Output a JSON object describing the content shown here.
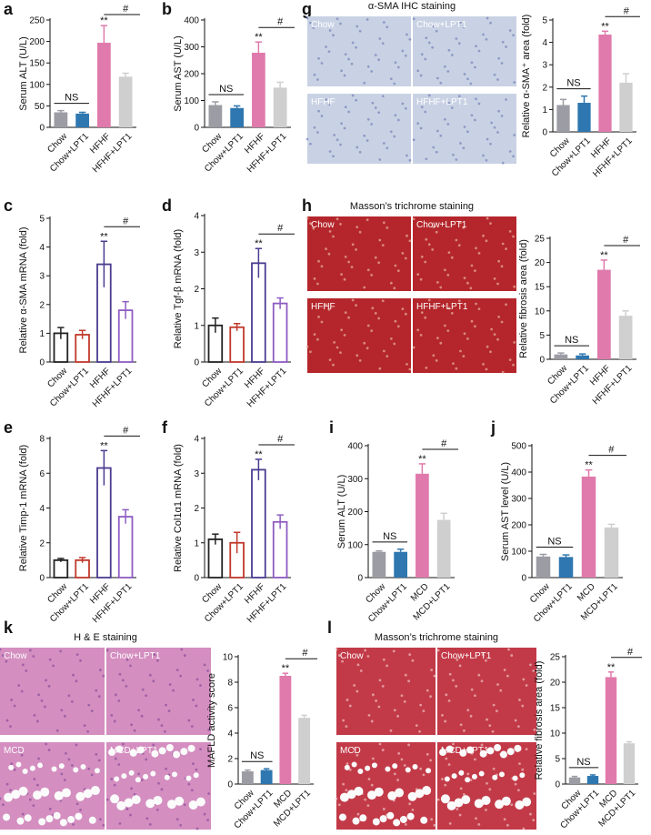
{
  "chart_data": [
    {
      "type": "bar",
      "panel": "a",
      "y_label": "Serum ALT (U/L)",
      "categories": [
        "Chow",
        "Chow+LPT1",
        "HFHF",
        "HFHF+LPT1"
      ],
      "values": [
        35,
        32,
        197,
        118
      ],
      "errors": [
        4,
        3,
        40,
        8
      ],
      "colors": [
        "#9c9ca4",
        "#2e77b0",
        "#e07aac",
        "#cfcfcf"
      ],
      "bar_style": "filled",
      "ylim": [
        0,
        250
      ],
      "yticks": [
        0,
        50,
        100,
        150,
        200,
        250
      ],
      "annotations": [
        "NS",
        "**",
        "#"
      ]
    },
    {
      "type": "bar",
      "panel": "b",
      "y_label": "Serum AST (U/L)",
      "categories": [
        "Chow",
        "Chow+LPT1",
        "HFHF",
        "HFHF+LPT1"
      ],
      "values": [
        83,
        72,
        278,
        148
      ],
      "errors": [
        12,
        8,
        40,
        20
      ],
      "colors": [
        "#9c9ca4",
        "#2e77b0",
        "#e07aac",
        "#cfcfcf"
      ],
      "bar_style": "filled",
      "ylim": [
        0,
        400
      ],
      "yticks": [
        0,
        100,
        200,
        300,
        400
      ],
      "annotations": [
        "NS",
        "**",
        "#"
      ]
    },
    {
      "type": "bar",
      "panel": "g",
      "image_title": "α-SMA IHC staining",
      "image_labels": [
        "Chow",
        "Chow+LPT1",
        "HFHF",
        "HFHF+LPT1"
      ],
      "y_label": "Relative α-SMA⁺ area (fold)",
      "categories": [
        "Chow",
        "Chow+LPT1",
        "HFHF",
        "HFHF+LPT1"
      ],
      "values": [
        1.2,
        1.3,
        4.35,
        2.2
      ],
      "errors": [
        0.25,
        0.3,
        0.15,
        0.4
      ],
      "colors": [
        "#9c9ca4",
        "#2e77b0",
        "#e07aac",
        "#cfcfcf"
      ],
      "bar_style": "filled",
      "ylim": [
        0,
        5
      ],
      "yticks": [
        0,
        1,
        2,
        3,
        4,
        5
      ],
      "annotations": [
        "NS",
        "**",
        "#"
      ]
    },
    {
      "type": "bar",
      "panel": "c",
      "y_label": "Relative α-SMA mRNA (fold)",
      "categories": [
        "Chow",
        "Chow+LPT1",
        "HFHF",
        "HFHF+LPT1"
      ],
      "values": [
        1.0,
        0.95,
        3.4,
        1.8
      ],
      "errors": [
        0.2,
        0.15,
        0.8,
        0.3
      ],
      "colors": [
        "#222222",
        "#c0392b",
        "#4b3b8f",
        "#8e5cc2"
      ],
      "bar_style": "open",
      "ylim": [
        0,
        5
      ],
      "yticks": [
        0,
        1,
        2,
        3,
        4,
        5
      ],
      "annotations": [
        "**",
        "#"
      ]
    },
    {
      "type": "bar",
      "panel": "d",
      "y_label": "Relative Tgf-β mRNA (fold)",
      "categories": [
        "Chow",
        "Chow+LPT1",
        "HFHF",
        "HFHF+LPT1"
      ],
      "values": [
        1.0,
        0.95,
        2.7,
        1.6
      ],
      "errors": [
        0.2,
        0.1,
        0.4,
        0.15
      ],
      "colors": [
        "#222222",
        "#c0392b",
        "#4b3b8f",
        "#8e5cc2"
      ],
      "bar_style": "open",
      "ylim": [
        0,
        4
      ],
      "yticks": [
        0,
        1,
        2,
        3,
        4
      ],
      "annotations": [
        "**",
        "#"
      ]
    },
    {
      "type": "bar",
      "panel": "h",
      "image_title": "Masson’s trichrome staining",
      "image_labels": [
        "Chow",
        "Chow+LPT1",
        "HFHF",
        "HFHF+LPT1"
      ],
      "y_label": "Relative fibrosis area (fold)",
      "categories": [
        "Chow",
        "Chow+LPT1",
        "HFHF",
        "HFHF+LPT1"
      ],
      "values": [
        1,
        0.8,
        18.5,
        9
      ],
      "errors": [
        0.3,
        0.3,
        2,
        1
      ],
      "colors": [
        "#9c9ca4",
        "#2e77b0",
        "#e07aac",
        "#cfcfcf"
      ],
      "bar_style": "filled",
      "ylim": [
        0,
        25
      ],
      "yticks": [
        0,
        5,
        10,
        15,
        20,
        25
      ],
      "annotations": [
        "NS",
        "**",
        "#"
      ]
    },
    {
      "type": "bar",
      "panel": "e",
      "y_label": "Relative Timp-1 mRNA (fold)",
      "categories": [
        "Chow",
        "Chow+LPT1",
        "HFHF",
        "HFHF+LPT1"
      ],
      "values": [
        1.0,
        1.0,
        6.3,
        3.5
      ],
      "errors": [
        0.1,
        0.15,
        1.0,
        0.4
      ],
      "colors": [
        "#222222",
        "#c0392b",
        "#4b3b8f",
        "#8e5cc2"
      ],
      "bar_style": "open",
      "ylim": [
        0,
        8
      ],
      "yticks": [
        0,
        2,
        4,
        6,
        8
      ],
      "annotations": [
        "**",
        "#"
      ]
    },
    {
      "type": "bar",
      "panel": "f",
      "y_label": "Relative Col1α1 mRNA (fold)",
      "categories": [
        "Chow",
        "Chow+LPT1",
        "HFHF",
        "HFHF+LPT1"
      ],
      "values": [
        1.1,
        1.0,
        3.1,
        1.6
      ],
      "errors": [
        0.15,
        0.3,
        0.3,
        0.2
      ],
      "colors": [
        "#222222",
        "#c0392b",
        "#4b3b8f",
        "#8e5cc2"
      ],
      "bar_style": "open",
      "ylim": [
        0,
        4
      ],
      "yticks": [
        0,
        1,
        2,
        3,
        4
      ],
      "annotations": [
        "**",
        "#"
      ]
    },
    {
      "type": "bar",
      "panel": "i",
      "y_label": "Serum ALT (U/L)",
      "categories": [
        "Chow",
        "Chow+LPT1",
        "MCD",
        "MCD+LPT1"
      ],
      "values": [
        78,
        78,
        315,
        175
      ],
      "errors": [
        3,
        8,
        30,
        20
      ],
      "colors": [
        "#9c9ca4",
        "#2e77b0",
        "#e07aac",
        "#cfcfcf"
      ],
      "bar_style": "filled",
      "ylim": [
        0,
        400
      ],
      "yticks": [
        0,
        100,
        200,
        300,
        400
      ],
      "annotations": [
        "NS",
        "**",
        "#"
      ]
    },
    {
      "type": "bar",
      "panel": "j",
      "y_label": "Serum AST level (U/L)",
      "categories": [
        "Chow",
        "Chow+LPT1",
        "MCD",
        "MCD+LPT1"
      ],
      "values": [
        80,
        78,
        383,
        190
      ],
      "errors": [
        8,
        8,
        25,
        12
      ],
      "colors": [
        "#9c9ca4",
        "#2e77b0",
        "#e07aac",
        "#cfcfcf"
      ],
      "bar_style": "filled",
      "ylim": [
        0,
        500
      ],
      "yticks": [
        0,
        100,
        200,
        300,
        400,
        500
      ],
      "annotations": [
        "NS",
        "**",
        "#"
      ]
    },
    {
      "type": "bar",
      "panel": "k",
      "image_title": "H & E staining",
      "image_labels": [
        "Chow",
        "Chow+LPT1",
        "MCD",
        "MCD+LPT1"
      ],
      "y_label": "MAFLD activity score",
      "categories": [
        "Chow",
        "Chow+LPT1",
        "MCD",
        "MCD+LPT1"
      ],
      "values": [
        1.0,
        1.1,
        8.5,
        5.2
      ],
      "errors": [
        0.1,
        0.1,
        0.2,
        0.2
      ],
      "colors": [
        "#9c9ca4",
        "#2e77b0",
        "#e07aac",
        "#cfcfcf"
      ],
      "bar_style": "filled",
      "ylim": [
        0,
        10
      ],
      "yticks": [
        0,
        2,
        4,
        6,
        8,
        10
      ],
      "annotations": [
        "NS",
        "**",
        "#"
      ]
    },
    {
      "type": "bar",
      "panel": "l",
      "image_title": "Masson’s trichrome staining",
      "image_labels": [
        "Chow",
        "Chow+LPT1",
        "MCD",
        "MCD+LPT1"
      ],
      "y_label": "Relative fibrosis area (fold)",
      "categories": [
        "Chow",
        "Chow+LPT1",
        "MCD",
        "MCD+LPT1"
      ],
      "values": [
        1.3,
        1.6,
        21,
        8
      ],
      "errors": [
        0.2,
        0.2,
        1,
        0.3
      ],
      "colors": [
        "#9c9ca4",
        "#2e77b0",
        "#e07aac",
        "#cfcfcf"
      ],
      "bar_style": "filled",
      "ylim": [
        0,
        25
      ],
      "yticks": [
        0,
        5,
        10,
        15,
        20,
        25
      ],
      "annotations": [
        "NS",
        "**",
        "#"
      ]
    }
  ]
}
